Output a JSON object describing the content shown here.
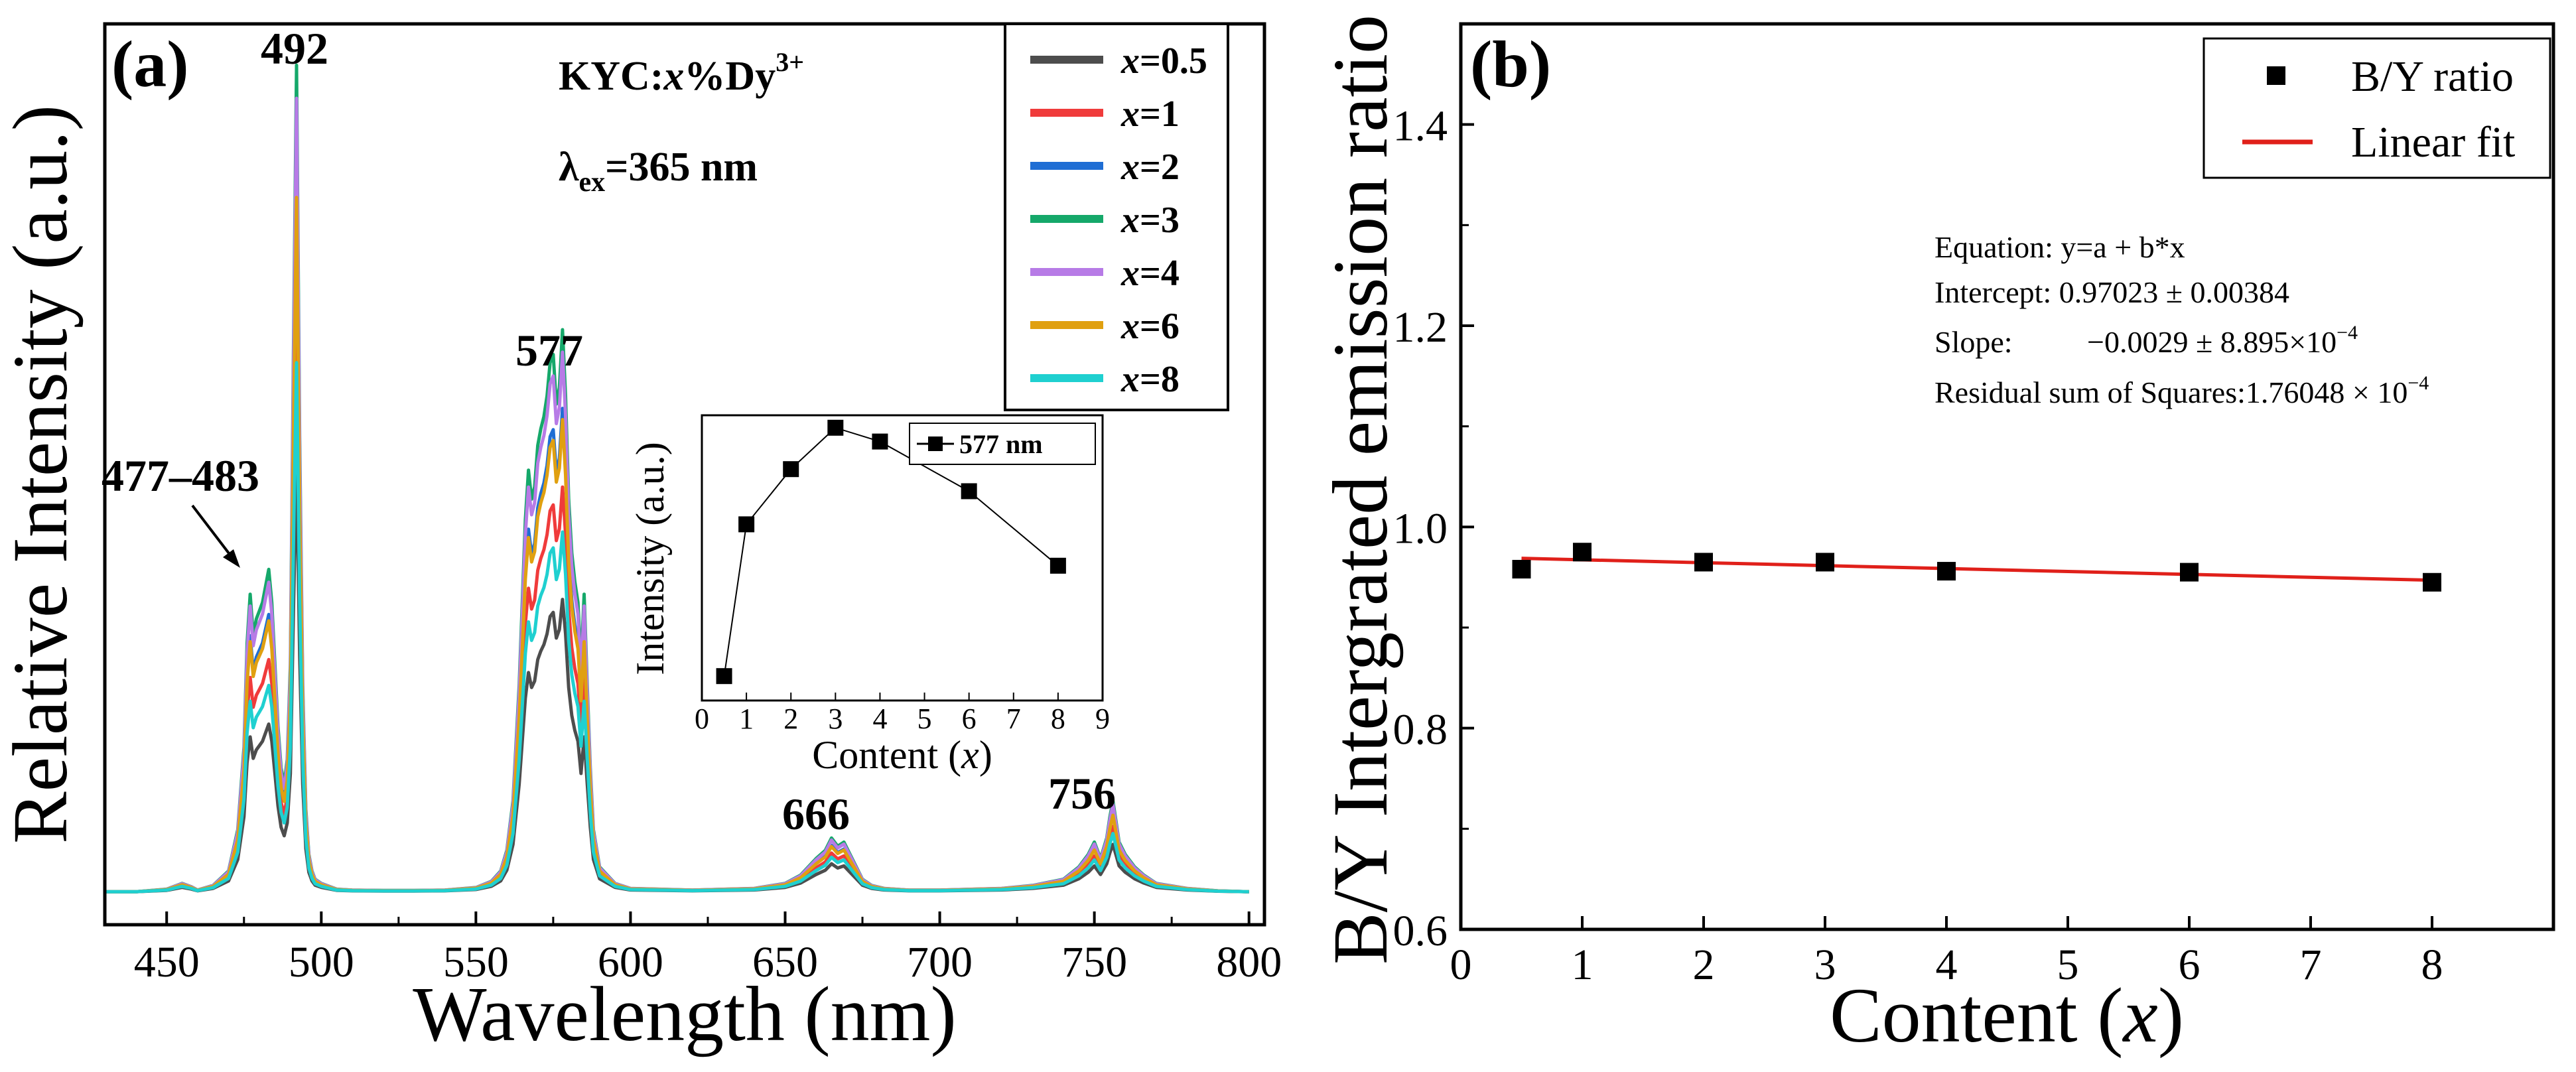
{
  "chart_data": [
    {
      "type": "line",
      "panel_label": "(a)",
      "title": "",
      "xlabel": "Wavelength (nm)",
      "ylabel": "Relative Intensity (a.u.)",
      "xlim": [
        430,
        805
      ],
      "ylim": [
        -0.08,
        2.1
      ],
      "x_ticks": [
        450,
        500,
        550,
        600,
        650,
        700,
        750,
        800
      ],
      "y_ticks": [],
      "annotations": {
        "composition": {
          "prefix": "KYC:",
          "var": "x",
          "suffix": "%Dy",
          "sup": "3+"
        },
        "excitation": {
          "lambda": "λ",
          "sub": "ex",
          "value": "=365 nm"
        },
        "peaks": {
          "p477": "477–483",
          "p492": "492",
          "p577": "577",
          "p666": "666",
          "p756": "756"
        }
      },
      "legend": {
        "position": "top-right",
        "var": "x",
        "entries": [
          {
            "label": "=0.5",
            "color": "#4d4d4d",
            "scale": 0.52
          },
          {
            "label": "=1",
            "color": "#f03b3b",
            "scale": 0.72
          },
          {
            "label": "=2",
            "color": "#1f6ed4",
            "scale": 0.86
          },
          {
            "label": "=3",
            "color": "#15a86a",
            "scale": 1.0
          },
          {
            "label": "=4",
            "color": "#b77be6",
            "scale": 0.96
          },
          {
            "label": "=6",
            "color": "#e0a010",
            "scale": 0.84
          },
          {
            "label": "=8",
            "color": "#1fd0d0",
            "scale": 0.64
          }
        ]
      },
      "base_spectrum": {
        "x": [
          430,
          440,
          450,
          455,
          458,
          460,
          465,
          470,
          473,
          475,
          476,
          477,
          478,
          479,
          480,
          481,
          482,
          483,
          484,
          485,
          486,
          487,
          488,
          489,
          490,
          491,
          492,
          493,
          494,
          495,
          496,
          497,
          498,
          500,
          505,
          510,
          520,
          530,
          540,
          550,
          555,
          558,
          560,
          562,
          564,
          566,
          567,
          568,
          569,
          570,
          571,
          572,
          573,
          574,
          575,
          576,
          577,
          578,
          579,
          580,
          581,
          582,
          583,
          584,
          585,
          586,
          587,
          588,
          590,
          595,
          600,
          620,
          640,
          650,
          655,
          660,
          663,
          665,
          667,
          669,
          671,
          673,
          675,
          678,
          682,
          690,
          700,
          720,
          730,
          740,
          745,
          748,
          750,
          752,
          754,
          755,
          756,
          757,
          758,
          760,
          763,
          766,
          770,
          780,
          790,
          800
        ],
        "y": [
          0.0,
          0.0,
          0.006,
          0.02,
          0.012,
          0.004,
          0.015,
          0.05,
          0.15,
          0.35,
          0.6,
          0.72,
          0.62,
          0.66,
          0.68,
          0.7,
          0.74,
          0.78,
          0.7,
          0.55,
          0.4,
          0.3,
          0.26,
          0.32,
          0.55,
          1.3,
          2.0,
          1.1,
          0.5,
          0.2,
          0.09,
          0.05,
          0.03,
          0.02,
          0.006,
          0.004,
          0.003,
          0.003,
          0.004,
          0.01,
          0.025,
          0.05,
          0.1,
          0.22,
          0.5,
          0.9,
          1.02,
          0.95,
          0.98,
          1.08,
          1.12,
          1.15,
          1.2,
          1.28,
          1.3,
          1.18,
          1.22,
          1.36,
          1.2,
          0.95,
          0.82,
          0.75,
          0.7,
          0.55,
          0.72,
          0.5,
          0.3,
          0.15,
          0.06,
          0.02,
          0.008,
          0.004,
          0.008,
          0.02,
          0.04,
          0.08,
          0.1,
          0.13,
          0.11,
          0.12,
          0.09,
          0.06,
          0.03,
          0.015,
          0.008,
          0.004,
          0.004,
          0.008,
          0.015,
          0.03,
          0.06,
          0.09,
          0.12,
          0.08,
          0.13,
          0.18,
          0.22,
          0.17,
          0.12,
          0.09,
          0.06,
          0.04,
          0.02,
          0.008,
          0.002,
          0.0
        ]
      },
      "inset": {
        "type": "line",
        "xlabel_text": "Content (",
        "xlabel_var": "x",
        "xlabel_end": ")",
        "ylabel": "Intensity (a.u.)",
        "xlim": [
          0,
          9
        ],
        "x_ticks": [
          0,
          1,
          2,
          3,
          4,
          5,
          6,
          7,
          8,
          9
        ],
        "legend": "577 nm",
        "x": [
          0.5,
          1,
          2,
          3,
          4,
          6,
          8
        ],
        "y": [
          0.05,
          0.6,
          0.8,
          0.95,
          0.9,
          0.72,
          0.45
        ]
      }
    },
    {
      "type": "scatter",
      "panel_label": "(b)",
      "title": "",
      "xlabel_text": "Content (",
      "xlabel_var": "x",
      "xlabel_end": ")",
      "ylabel": "B/Y Intergrated emission ratio",
      "xlim": [
        0,
        9
      ],
      "ylim": [
        0.6,
        1.5
      ],
      "x_ticks": [
        0,
        1,
        2,
        3,
        4,
        5,
        6,
        7,
        8
      ],
      "y_ticks": [
        0.6,
        0.8,
        1.0,
        1.2,
        1.4
      ],
      "y_tick_labels": [
        "0.6",
        "0.8",
        "1.0",
        "1.2",
        "1.4"
      ],
      "legend": {
        "position": "top-right",
        "entries": [
          {
            "label": "B/Y ratio",
            "color": "#000000",
            "marker": "square"
          },
          {
            "label": "Linear fit",
            "color": "#e0201a",
            "marker": "line"
          }
        ]
      },
      "series": [
        {
          "name": "B/Y ratio",
          "x": [
            0.5,
            1,
            2,
            3,
            4,
            6,
            8
          ],
          "y": [
            0.958,
            0.975,
            0.965,
            0.965,
            0.956,
            0.955,
            0.945
          ]
        }
      ],
      "fit": {
        "name": "Linear fit",
        "intercept": 0.97023,
        "slope": -0.0029,
        "x_range": [
          0.5,
          8
        ]
      },
      "fit_stats": {
        "equation": "Equation: y=a + b*x",
        "intercept": "Intercept: 0.97023 ± 0.00384",
        "slope_label": "Slope:",
        "slope_value": "−0.0029 ± 8.895×10",
        "slope_exp": "−4",
        "residual": "Residual sum of Squares:1.76048 × 10",
        "residual_exp": "−4"
      }
    }
  ]
}
